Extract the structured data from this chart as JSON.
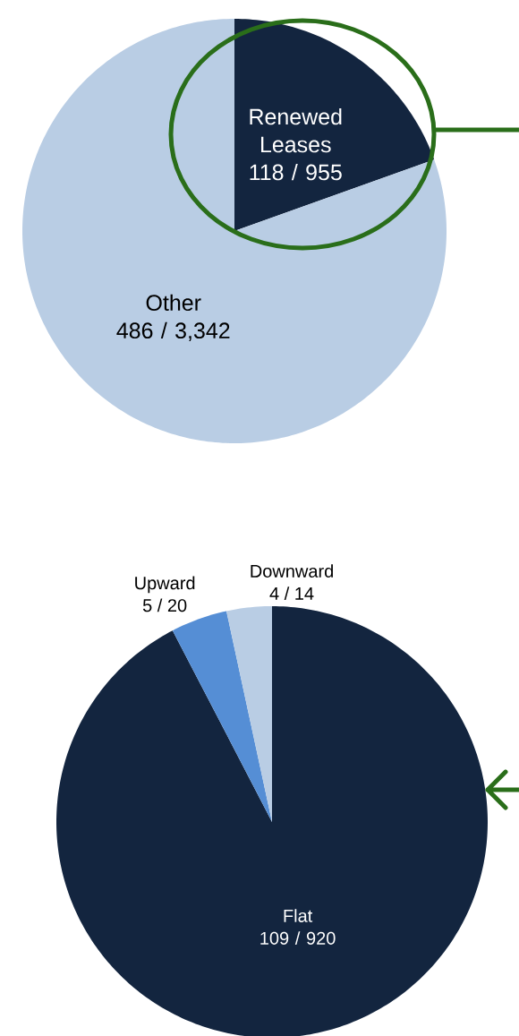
{
  "chart_data": [
    {
      "type": "pie",
      "categories": [
        "Renewed Leases",
        "Other"
      ],
      "values": [
        118,
        486
      ],
      "colors": [
        "#13253f",
        "#b9cde4"
      ],
      "value_labels": [
        "118 / 955",
        "486 / 3,342"
      ]
    },
    {
      "type": "pie",
      "categories": [
        "Flat",
        "Upward",
        "Downward"
      ],
      "values": [
        109,
        5,
        4
      ],
      "colors": [
        "#13253f",
        "#558ed5",
        "#b9cde4"
      ],
      "value_labels": [
        "109 / 920",
        "5 / 20",
        "4 / 14"
      ]
    }
  ]
}
